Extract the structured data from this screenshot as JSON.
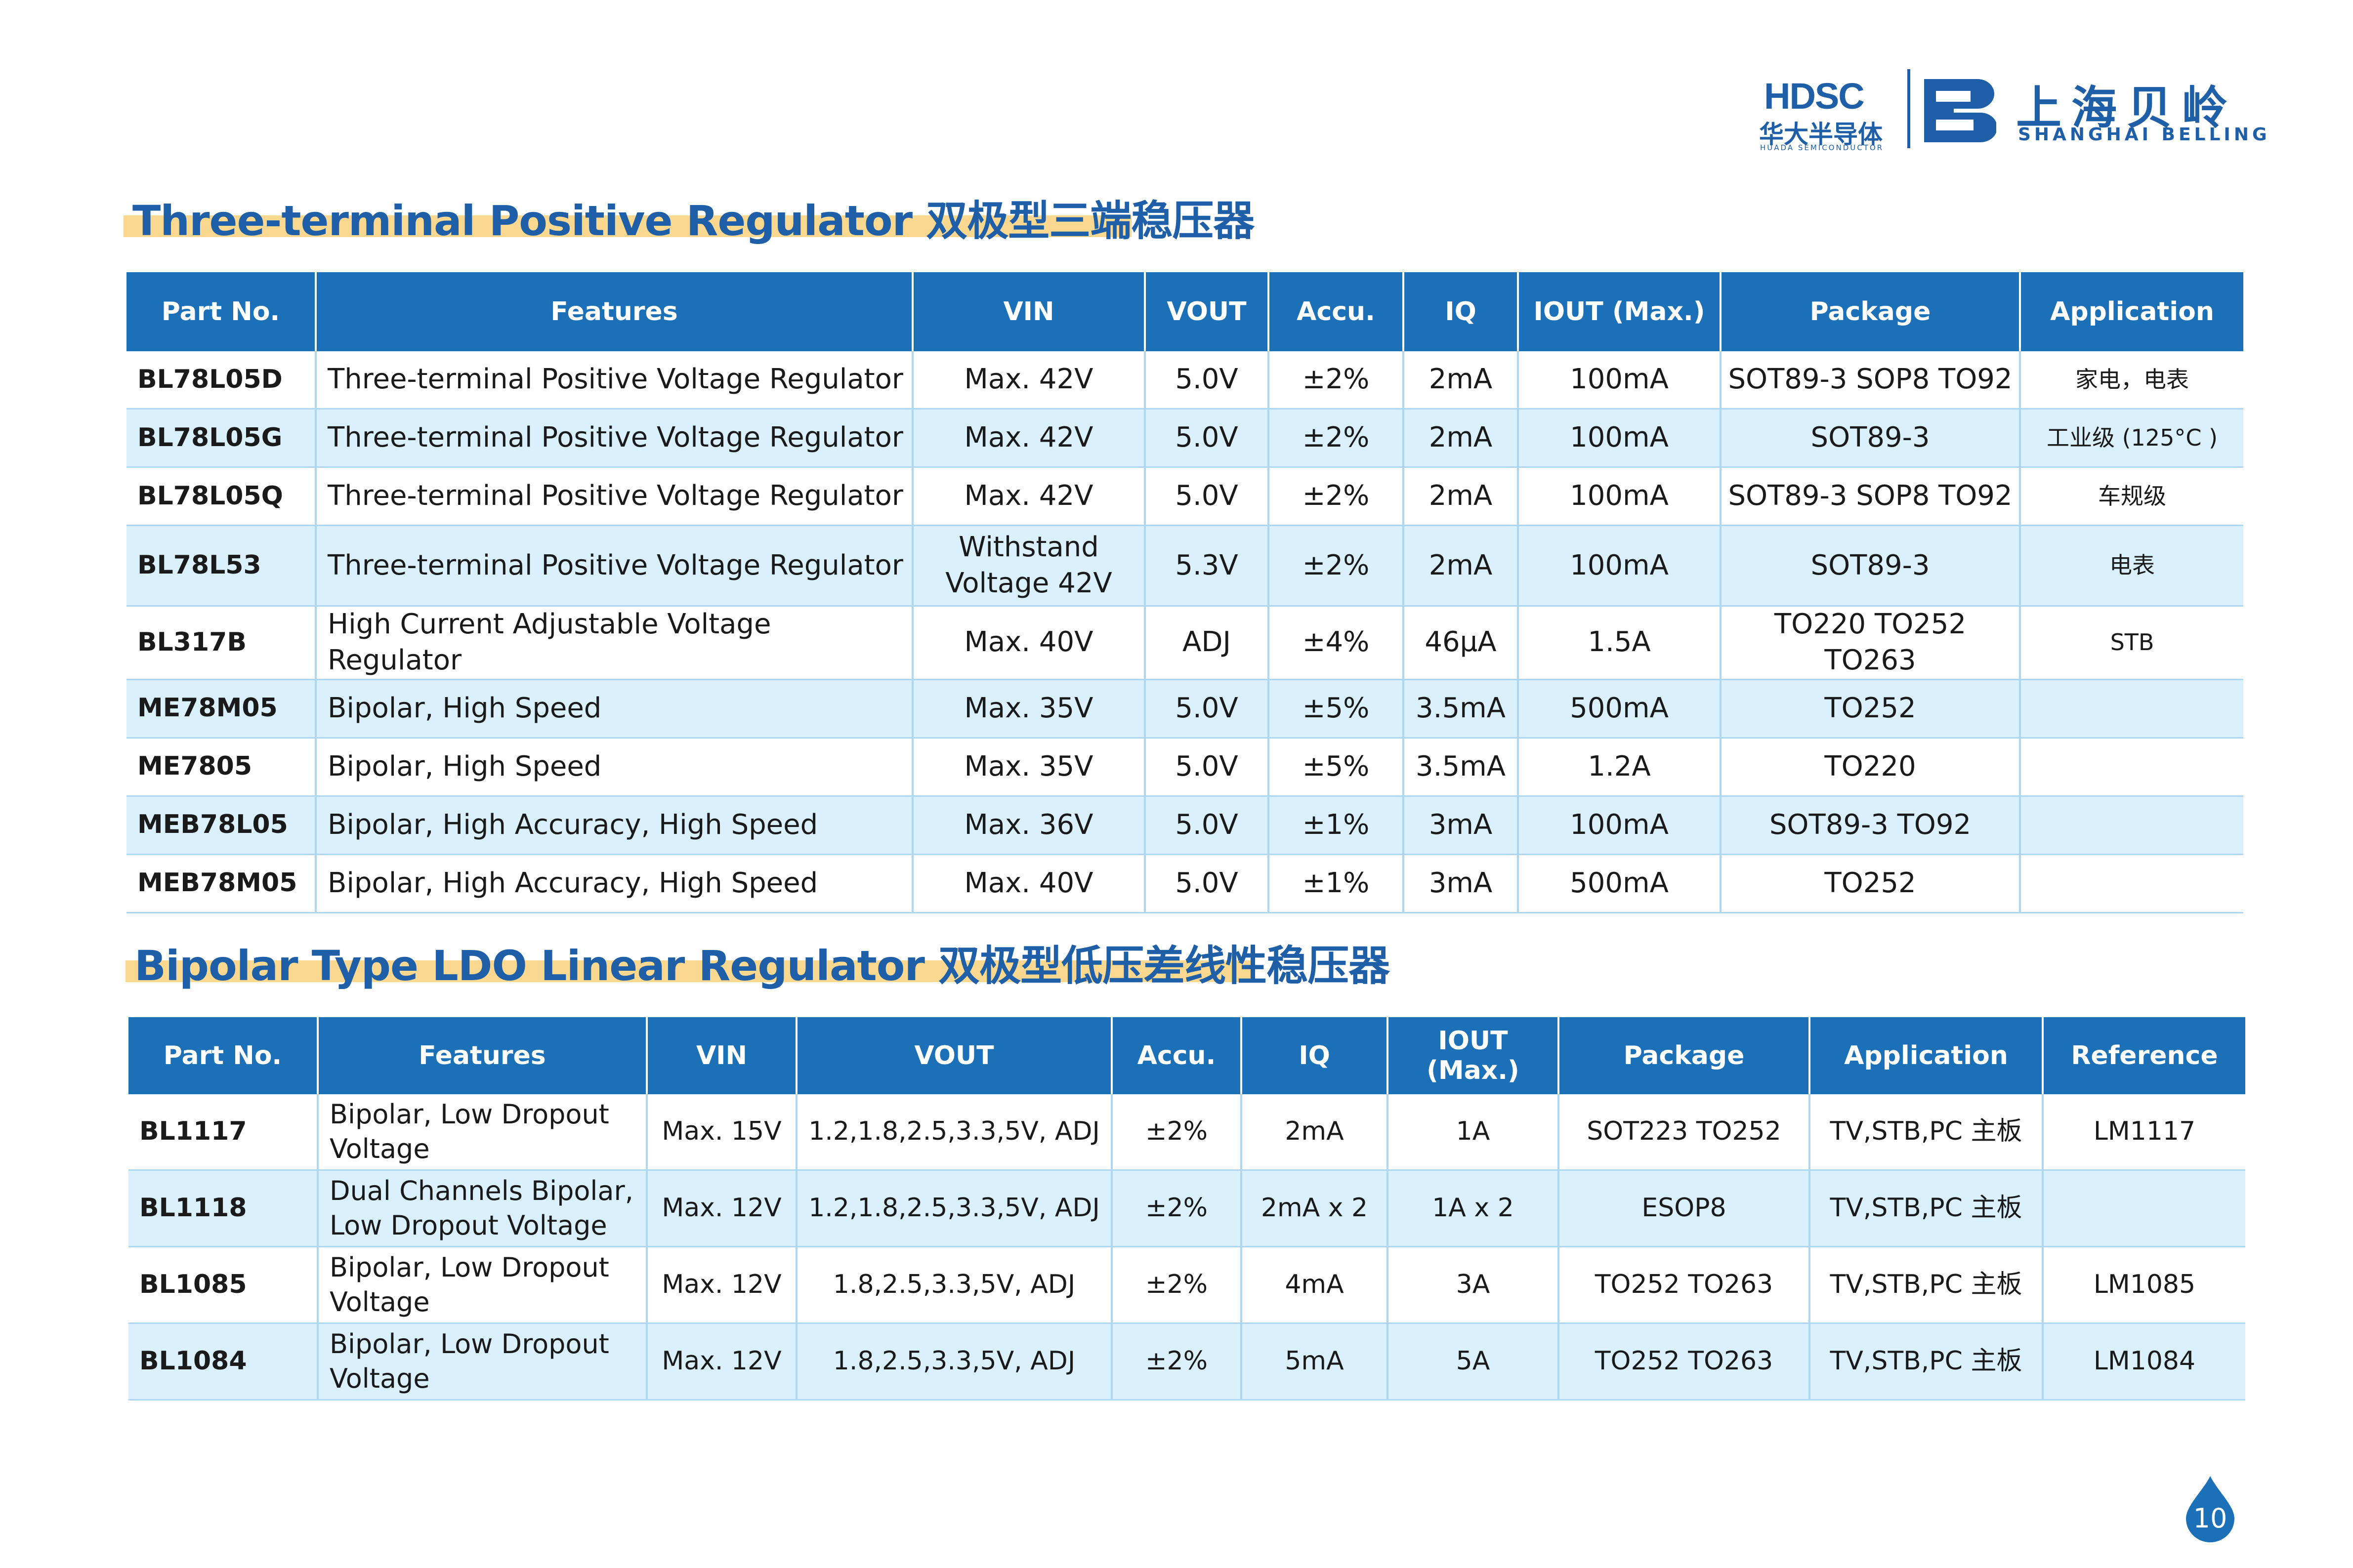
{
  "header": {
    "hdsc_logo_text": "HDSC",
    "hdsc_cn": "华大半导体",
    "hdsc_en": "HUADA SEMICONDUCTOR",
    "belling_cn": "上海贝岭",
    "belling_en": "SHANGHAI BELLING",
    "brand_color": "#1f5fa8"
  },
  "section1": {
    "title": "Three-terminal Positive Regulator 双极型三端稳压器",
    "columns": [
      "Part No.",
      "Features",
      "VIN",
      "VOUT",
      "Accu.",
      "IQ",
      "IOUT (Max.)",
      "Package",
      "Application"
    ],
    "rows": [
      [
        "BL78L05D",
        "Three-terminal Positive Voltage Regulator",
        "Max. 42V",
        "5.0V",
        "±2%",
        "2mA",
        "100mA",
        "SOT89-3 SOP8 TO92",
        "家电，电表"
      ],
      [
        "BL78L05G",
        "Three-terminal Positive Voltage Regulator",
        "Max. 42V",
        "5.0V",
        "±2%",
        "2mA",
        "100mA",
        "SOT89-3",
        "工业级 (125°C )"
      ],
      [
        "BL78L05Q",
        "Three-terminal Positive Voltage Regulator",
        "Max. 42V",
        "5.0V",
        "±2%",
        "2mA",
        "100mA",
        "SOT89-3 SOP8 TO92",
        "车规级"
      ],
      [
        "BL78L53",
        "Three-terminal Positive Voltage Regulator",
        "Withstand Voltage 42V",
        "5.3V",
        "±2%",
        "2mA",
        "100mA",
        "SOT89-3",
        "电表"
      ],
      [
        "BL317B",
        "High Current Adjustable Voltage Regulator",
        "Max. 40V",
        "ADJ",
        "±4%",
        "46μA",
        "1.5A",
        "TO220 TO252 TO263",
        "STB"
      ],
      [
        "ME78M05",
        "Bipolar, High Speed",
        "Max. 35V",
        "5.0V",
        "±5%",
        "3.5mA",
        "500mA",
        "TO252",
        ""
      ],
      [
        "ME7805",
        "Bipolar, High Speed",
        "Max. 35V",
        "5.0V",
        "±5%",
        "3.5mA",
        "1.2A",
        "TO220",
        ""
      ],
      [
        "MEB78L05",
        "Bipolar, High Accuracy, High Speed",
        "Max. 36V",
        "5.0V",
        "±1%",
        "3mA",
        "100mA",
        "SOT89-3 TO92",
        ""
      ],
      [
        "MEB78M05",
        "Bipolar, High Accuracy, High Speed",
        "Max. 40V",
        "5.0V",
        "±1%",
        "3mA",
        "500mA",
        "TO252",
        ""
      ]
    ]
  },
  "section2": {
    "title": "Bipolar Type LDO Linear Regulator 双极型低压差线性稳压器",
    "columns": [
      "Part No.",
      "Features",
      "VIN",
      "VOUT",
      "Accu.",
      "IQ",
      "IOUT (Max.)",
      "Package",
      "Application",
      "Reference"
    ],
    "rows": [
      [
        "BL1117",
        "Bipolar, Low Dropout Voltage",
        "Max. 15V",
        "1.2,1.8,2.5,3.3,5V, ADJ",
        "±2%",
        "2mA",
        "1A",
        "SOT223 TO252",
        "TV,STB,PC 主板",
        "LM1117"
      ],
      [
        "BL1118",
        "Dual Channels Bipolar, Low Dropout Voltage",
        "Max. 12V",
        "1.2,1.8,2.5,3.3,5V, ADJ",
        "±2%",
        "2mA x 2",
        "1A x 2",
        "ESOP8",
        "TV,STB,PC 主板",
        ""
      ],
      [
        "BL1085",
        "Bipolar, Low Dropout Voltage",
        "Max. 12V",
        "1.8,2.5,3.3,5V, ADJ",
        "±2%",
        "4mA",
        "3A",
        "TO252 TO263",
        "TV,STB,PC 主板",
        "LM1085"
      ],
      [
        "BL1084",
        "Bipolar, Low Dropout Voltage",
        "Max. 12V",
        "1.8,2.5,3.3,5V, ADJ",
        "±2%",
        "5mA",
        "5A",
        "TO252 TO263",
        "TV,STB,PC 主板",
        "LM1084"
      ]
    ]
  },
  "footer": {
    "page_number": "10",
    "badge_icon": "water-drop-icon",
    "badge_color": "#1b70b8"
  }
}
